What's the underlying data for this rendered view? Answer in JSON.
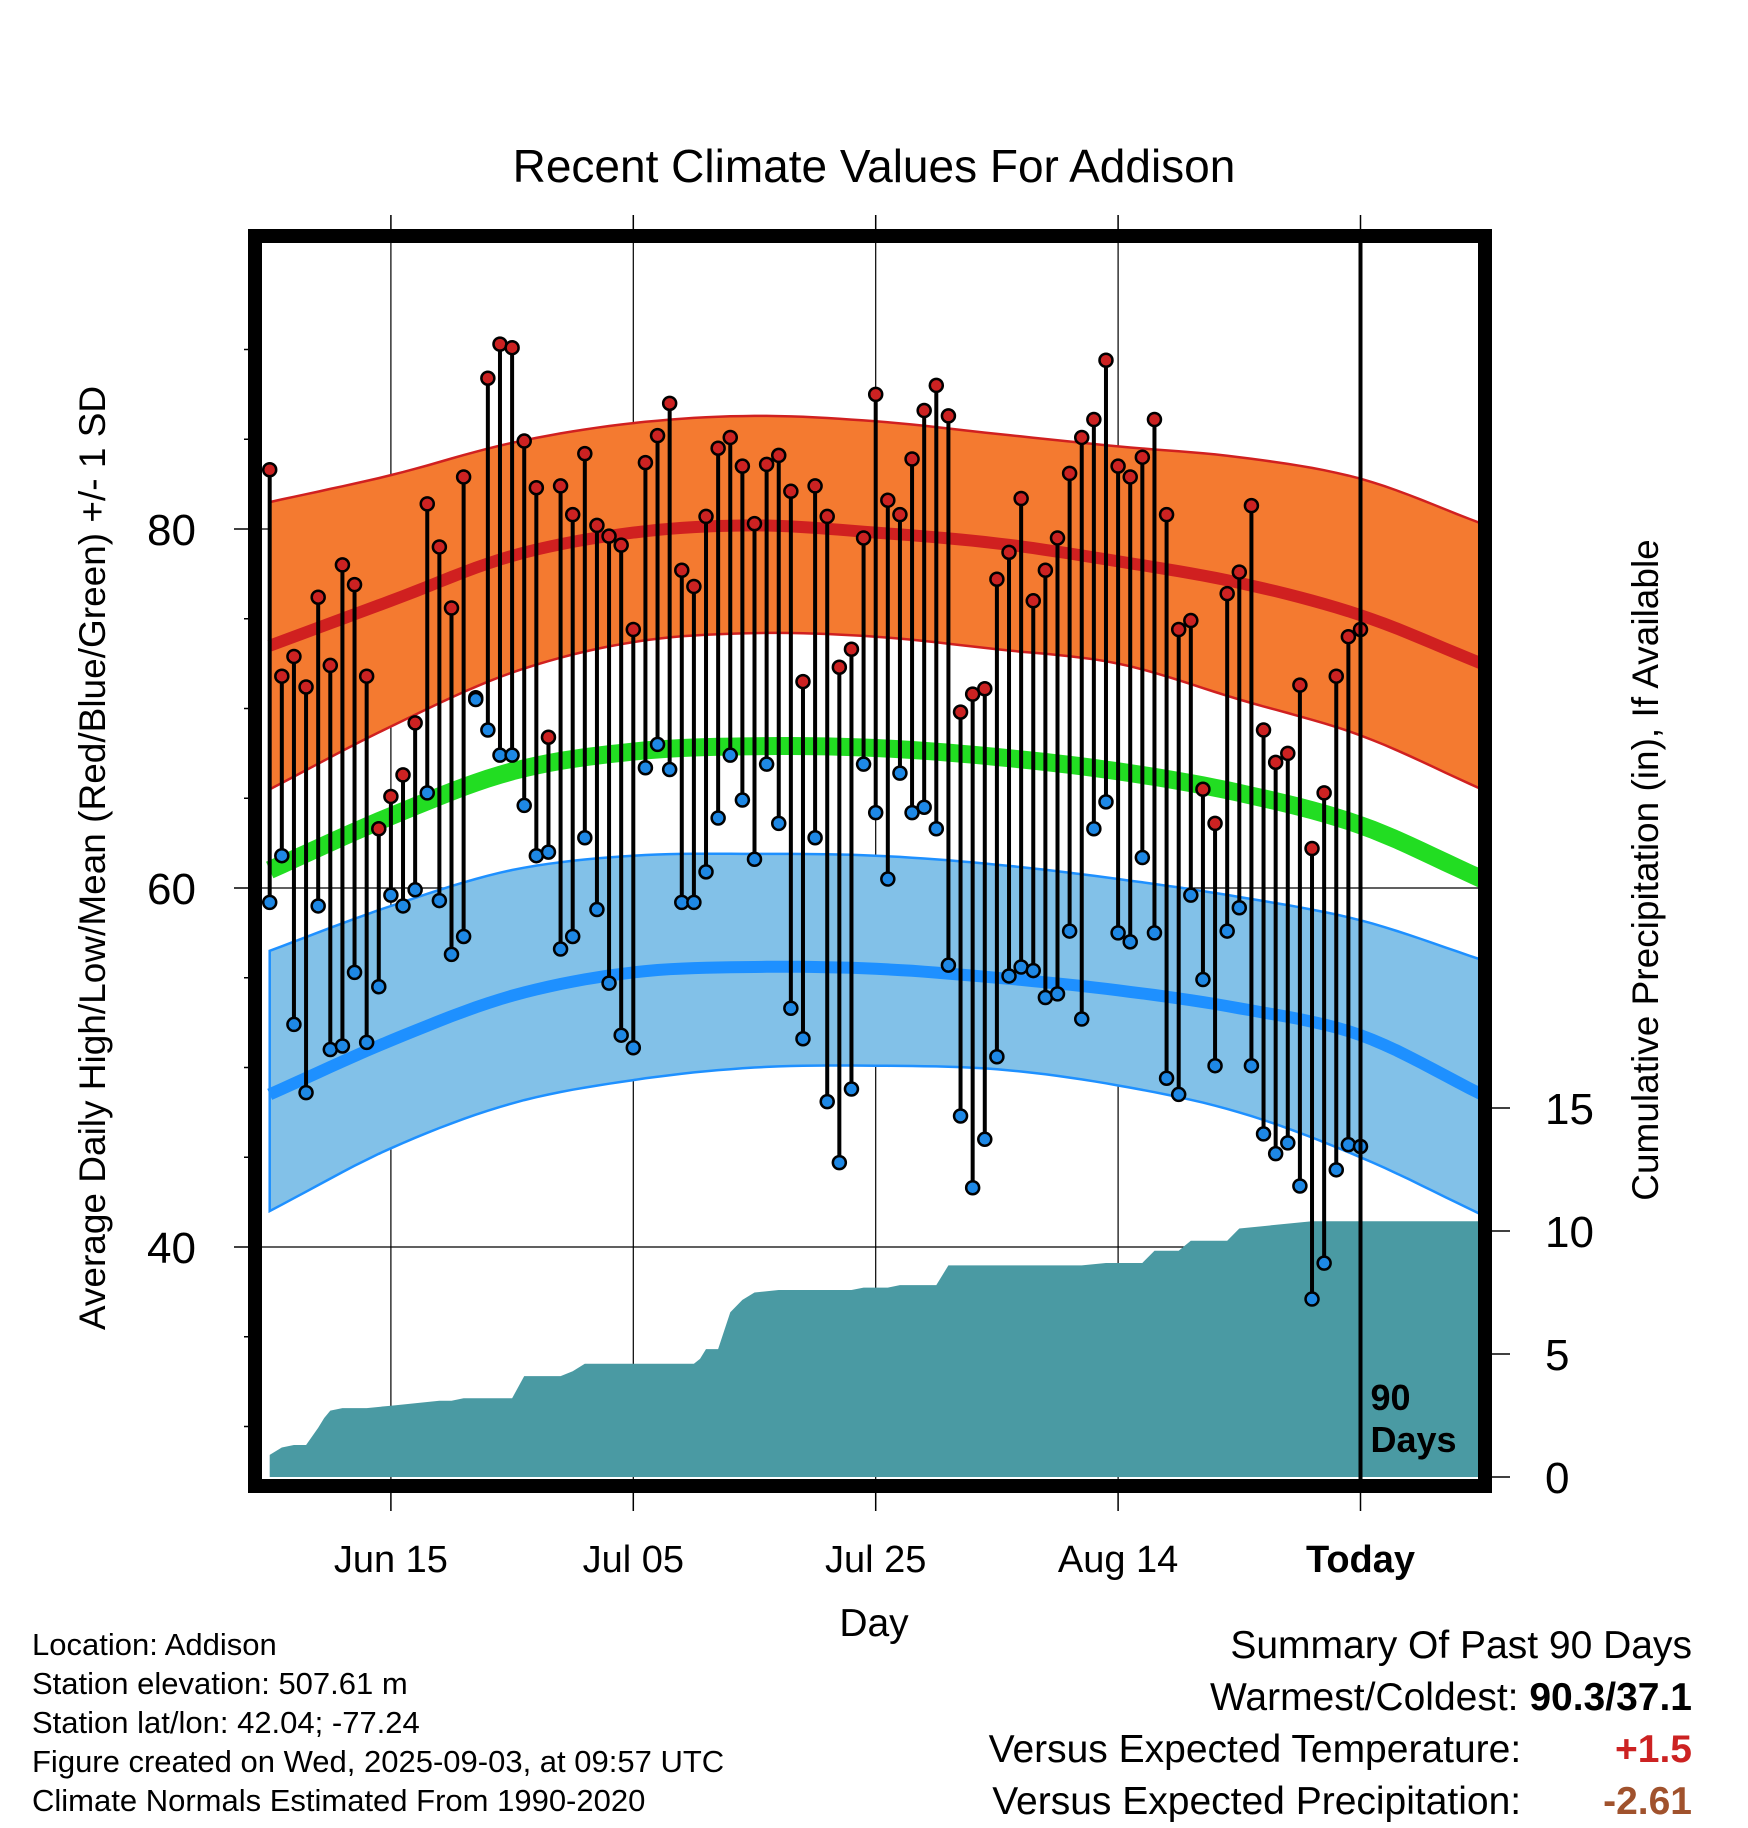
{
  "chart_data": {
    "type": "line",
    "title": "Recent Climate Values For Addison",
    "xlabel": "Day",
    "ylabel_left": "Average Daily High/Low/Mean (Red/Blue/Green) +/- 1 SD",
    "ylabel_right": "Cumulative Precipitation (in), If Available",
    "ylim_left": [
      28,
      95
    ],
    "ylim_right": [
      0,
      20
    ],
    "yticks_left": [
      40,
      60,
      80
    ],
    "yticks_right": [
      0,
      5,
      10,
      15
    ],
    "x_range_days": [
      0,
      100
    ],
    "x_ticks": [
      {
        "day": 10,
        "label": "Jun 15"
      },
      {
        "day": 30,
        "label": "Jul 05"
      },
      {
        "day": 50,
        "label": "Jul 25"
      },
      {
        "day": 70,
        "label": "Aug 14"
      },
      {
        "day": 90,
        "label": "Today"
      }
    ],
    "today_marker_label": "90 Days",
    "normals": {
      "day": [
        0,
        10,
        20,
        30,
        40,
        50,
        60,
        70,
        80,
        90,
        100
      ],
      "high_mean": [
        73.5,
        76.0,
        78.5,
        79.8,
        80.2,
        79.8,
        79.2,
        78.2,
        77.0,
        75.2,
        72.5
      ],
      "high_plus_sd": [
        81.5,
        83.0,
        84.8,
        85.9,
        86.3,
        86.0,
        85.3,
        84.6,
        84.0,
        82.8,
        80.3
      ],
      "high_minus_sd": [
        65.5,
        69.0,
        72.0,
        73.7,
        74.2,
        74.0,
        73.3,
        72.5,
        70.5,
        68.5,
        65.5
      ],
      "mean": [
        61.0,
        64.0,
        66.5,
        67.6,
        67.9,
        67.8,
        67.3,
        66.5,
        65.3,
        63.5,
        60.5
      ],
      "low_mean": [
        48.5,
        51.5,
        54.0,
        55.3,
        55.6,
        55.5,
        55.0,
        54.3,
        53.3,
        51.8,
        48.5
      ],
      "low_plus_sd": [
        56.5,
        59.0,
        61.0,
        61.8,
        61.9,
        61.8,
        61.3,
        60.5,
        59.5,
        58.2,
        56.0
      ],
      "low_minus_sd": [
        42.0,
        45.5,
        48.0,
        49.3,
        50.0,
        50.1,
        49.9,
        49.0,
        47.5,
        45.0,
        41.8
      ]
    },
    "daily_high": [
      83.3,
      71.8,
      72.9,
      71.2,
      76.2,
      72.4,
      78.0,
      76.9,
      71.8,
      63.3,
      65.1,
      66.3,
      69.2,
      81.4,
      79.0,
      75.6,
      82.9,
      70.6,
      88.4,
      90.3,
      90.1,
      84.9,
      82.3,
      68.4,
      82.4,
      80.8,
      84.2,
      80.2,
      79.6,
      79.1,
      74.4,
      83.7,
      85.2,
      87.0,
      77.7,
      76.8,
      80.7,
      84.5,
      85.1,
      83.5,
      80.3,
      83.6,
      84.1,
      82.1,
      71.5,
      82.4,
      80.7,
      72.3,
      73.3,
      79.5,
      87.5,
      81.6,
      80.8,
      83.9,
      86.6,
      88.0,
      86.3,
      69.8,
      70.8,
      71.1,
      77.2,
      78.7,
      81.7,
      76.0,
      77.7,
      79.5,
      83.1,
      85.1,
      86.1,
      89.4,
      83.5,
      82.9,
      84.0,
      86.1,
      80.8,
      74.4,
      74.9,
      65.5,
      63.6,
      76.4,
      77.6,
      81.3,
      68.8,
      67.0,
      67.5,
      71.3,
      62.2,
      65.3,
      71.8,
      74.0,
      74.4
    ],
    "daily_low": [
      59.2,
      61.8,
      52.4,
      48.6,
      59.0,
      51.0,
      51.2,
      55.3,
      51.4,
      54.5,
      59.6,
      59.0,
      59.9,
      65.3,
      59.3,
      56.3,
      57.3,
      70.5,
      68.8,
      67.4,
      67.4,
      64.6,
      61.8,
      62.0,
      56.6,
      57.3,
      62.8,
      58.8,
      54.7,
      51.8,
      51.1,
      66.7,
      68.0,
      66.6,
      59.2,
      59.2,
      60.9,
      63.9,
      67.4,
      64.9,
      61.6,
      66.9,
      63.6,
      53.3,
      51.6,
      62.8,
      48.1,
      44.7,
      48.8,
      66.9,
      64.2,
      60.5,
      66.4,
      64.2,
      64.5,
      63.3,
      55.7,
      47.3,
      43.3,
      46.0,
      50.6,
      55.1,
      55.6,
      55.4,
      53.9,
      54.1,
      57.6,
      52.7,
      63.3,
      64.8,
      57.5,
      57.0,
      61.7,
      57.5,
      49.4,
      48.5,
      59.6,
      54.9,
      50.1,
      57.6,
      58.9,
      50.1,
      46.3,
      45.2,
      45.8,
      43.4,
      37.1,
      39.1,
      44.3,
      45.7,
      45.6
    ],
    "cumulative_precip": {
      "day": [
        0,
        1,
        2,
        3,
        4,
        4.5,
        5,
        6,
        8,
        10,
        12,
        14,
        15,
        16,
        18,
        19,
        20,
        21,
        24,
        25,
        26,
        28,
        30,
        33,
        35,
        35.5,
        36,
        37,
        38,
        39,
        40,
        42,
        43,
        47,
        48,
        49,
        51,
        52,
        54,
        55,
        56,
        58,
        60,
        62,
        63,
        65,
        67,
        69,
        70,
        72,
        73,
        75,
        76,
        79,
        80,
        82,
        84,
        86,
        88,
        90,
        100
      ],
      "value": [
        0.9,
        1.2,
        1.3,
        1.3,
        2.0,
        2.4,
        2.7,
        2.8,
        2.8,
        2.9,
        3.0,
        3.1,
        3.1,
        3.2,
        3.2,
        3.2,
        3.2,
        4.1,
        4.1,
        4.3,
        4.6,
        4.6,
        4.6,
        4.6,
        4.6,
        4.8,
        5.2,
        5.2,
        6.7,
        7.2,
        7.5,
        7.6,
        7.6,
        7.6,
        7.6,
        7.7,
        7.7,
        7.8,
        7.8,
        7.8,
        8.6,
        8.6,
        8.6,
        8.6,
        8.6,
        8.6,
        8.6,
        8.7,
        8.7,
        8.7,
        9.2,
        9.2,
        9.6,
        9.6,
        10.1,
        10.2,
        10.3,
        10.4,
        10.4,
        10.4,
        10.4
      ]
    },
    "colors": {
      "high_band": "#f47a30",
      "high_line": "#d02020",
      "mean_line": "#22dd22",
      "low_band": "#82c1e8",
      "low_line": "#1e90ff",
      "precip_fill": "#4a9aa3",
      "high_marker": "#cc2222",
      "low_marker": "#1e88e5"
    },
    "grid": true
  },
  "info": {
    "location": "Location: Addison",
    "elevation": "Station elevation: 507.61 m",
    "latlon": "Station lat/lon: 42.04; -77.24",
    "created": "Figure created on Wed, 2025-09-03, at 09:57 UTC",
    "normals_period": "Climate Normals Estimated From 1990-2020"
  },
  "summary": {
    "heading": "Summary Of Past 90 Days",
    "warmest_label": "Warmest/Coldest:",
    "warmest_value": "90.3/37.1",
    "temp_label": "Versus Expected Temperature:",
    "temp_value": "+1.5",
    "temp_color": "#cc2222",
    "precip_label": "Versus Expected Precipitation:",
    "precip_value": "-2.61",
    "precip_color": "#a0522d"
  }
}
